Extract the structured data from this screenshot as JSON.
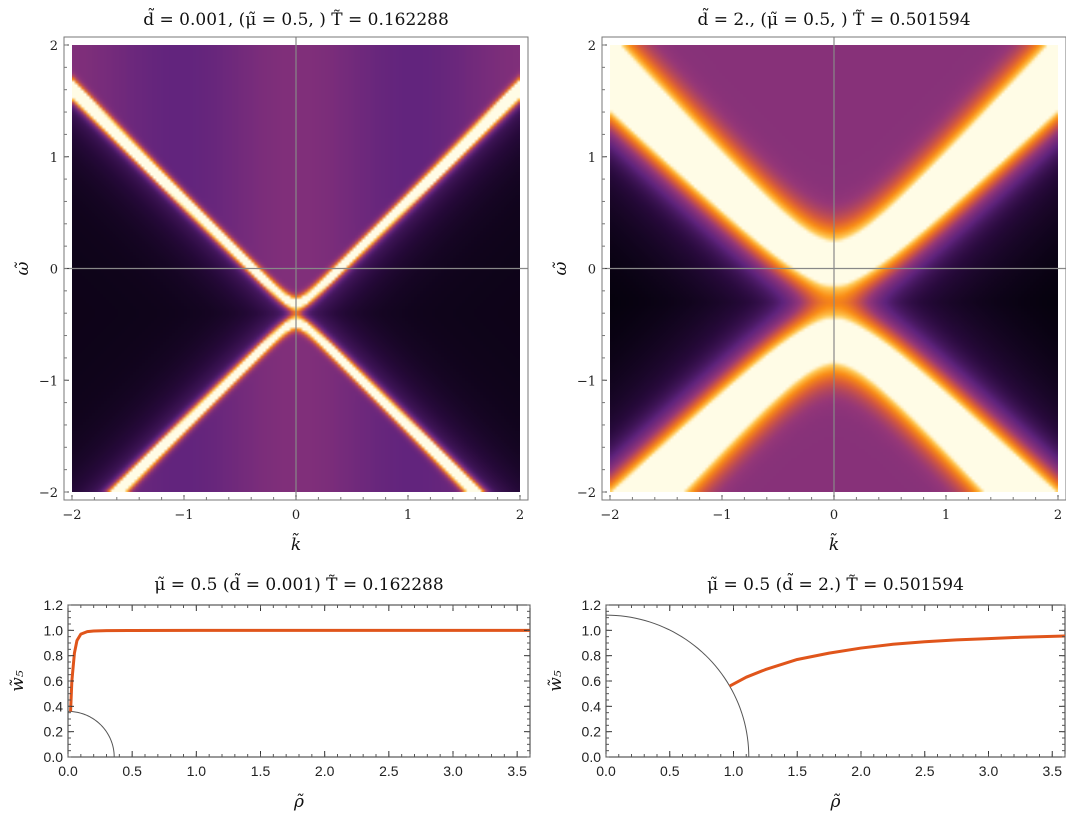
{
  "colors": {
    "line": "#E0551B",
    "circle": "#555555",
    "axis": "#888888",
    "frame": "#777777"
  },
  "chart_data": [
    {
      "type": "heatmap",
      "title": "d̃ = 0.001,   (μ̃ = 0.5, )   T̃ = 0.162288",
      "xlabel": "k̃",
      "ylabel": "ω̃",
      "xlim": [
        -2,
        2
      ],
      "ylim": [
        -2,
        2
      ],
      "xticks": [
        "−2",
        "−1",
        "0",
        "1",
        "2"
      ],
      "yticks": [
        "−2",
        "−1",
        "0",
        "1",
        "2"
      ],
      "colormap": "inferno-like (black → purple → orange → white)",
      "params": {
        "d": 0.001,
        "mu": 0.5,
        "T": 0.162288,
        "gap": 0.08,
        "vertex_omega": -0.4,
        "band_width": 0.07
      }
    },
    {
      "type": "heatmap",
      "title": "d̃ = 2.,   (μ̃ = 0.5, )   T̃ = 0.501594",
      "xlabel": "k̃",
      "ylabel": "ω̃",
      "xlim": [
        -2,
        2
      ],
      "ylim": [
        -2,
        2
      ],
      "xticks": [
        "−2",
        "−1",
        "0",
        "1",
        "2"
      ],
      "yticks": [
        "−2",
        "−1",
        "0",
        "1",
        "2"
      ],
      "colormap": "inferno-like (black → purple → orange → white)",
      "params": {
        "d": 2.0,
        "mu": 0.5,
        "T": 0.501594,
        "gap": 0.35,
        "vertex_omega": -0.3,
        "band_width": 0.32
      }
    },
    {
      "type": "line",
      "title": "μ̃ = 0.5   (d̃ = 0.001)   T̃ = 0.162288",
      "xlabel": "ρ̃",
      "ylabel": "w̃₅",
      "xlim": [
        0,
        3.6
      ],
      "ylim": [
        0,
        1.2
      ],
      "xticks": [
        "0.0",
        "0.5",
        "1.0",
        "1.5",
        "2.0",
        "2.5",
        "3.0",
        "3.5"
      ],
      "yticks": [
        "0.0",
        "0.2",
        "0.4",
        "0.6",
        "0.8",
        "1.0",
        "1.2"
      ],
      "horizon_radius": 0.36,
      "series": [
        {
          "x": [
            0.02,
            0.03,
            0.05,
            0.07,
            0.1,
            0.15,
            0.2,
            0.3,
            0.5,
            1.0,
            2.0,
            3.0,
            3.6
          ],
          "y": [
            0.36,
            0.6,
            0.82,
            0.92,
            0.97,
            0.99,
            0.995,
            0.998,
            0.999,
            1.0,
            1.0,
            1.0,
            1.0
          ]
        }
      ]
    },
    {
      "type": "line",
      "title": "μ̃ = 0.5   (d̃ = 2.)   T̃ = 0.501594",
      "xlabel": "ρ̃",
      "ylabel": "w̃₅",
      "xlim": [
        0,
        3.6
      ],
      "ylim": [
        0,
        1.2
      ],
      "xticks": [
        "0.0",
        "0.5",
        "1.0",
        "1.5",
        "2.0",
        "2.5",
        "3.0",
        "3.5"
      ],
      "yticks": [
        "0.0",
        "0.2",
        "0.4",
        "0.6",
        "0.8",
        "1.0",
        "1.2"
      ],
      "horizon_radius": 1.12,
      "series": [
        {
          "x": [
            0.97,
            1.1,
            1.25,
            1.5,
            1.75,
            2.0,
            2.25,
            2.5,
            2.75,
            3.0,
            3.25,
            3.6
          ],
          "y": [
            0.56,
            0.63,
            0.69,
            0.77,
            0.82,
            0.86,
            0.89,
            0.91,
            0.925,
            0.935,
            0.945,
            0.955
          ]
        }
      ]
    }
  ]
}
